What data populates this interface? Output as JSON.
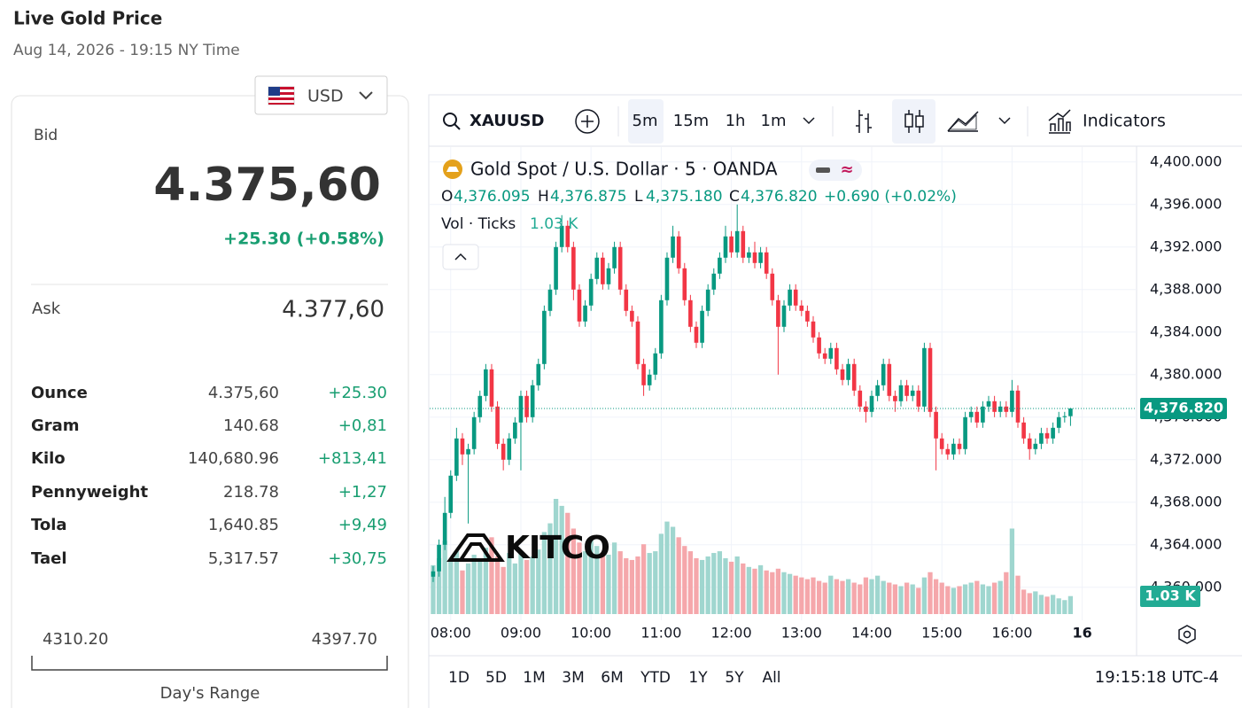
{
  "header": {
    "title": "Live Gold Price",
    "subtitle": "Aug 14, 2026 - 19:15 NY Time"
  },
  "currency": "USD",
  "quote": {
    "bid_label": "Bid",
    "bid": "4.375,60",
    "change": "+25.30 (+0.58%)",
    "ask_label": "Ask",
    "ask": "4.377,60"
  },
  "units": [
    {
      "name": "Ounce",
      "price": "4.375,60",
      "change": "+25.30"
    },
    {
      "name": "Gram",
      "price": "140.68",
      "change": "+0,81"
    },
    {
      "name": "Kilo",
      "price": "140,680.96",
      "change": "+813,41"
    },
    {
      "name": "Pennyweight",
      "price": "218.78",
      "change": "+1,27"
    },
    {
      "name": "Tola",
      "price": "1,640.85",
      "change": "+9,49"
    },
    {
      "name": "Tael",
      "price": "5,317.57",
      "change": "+30,75"
    }
  ],
  "range": {
    "low": "4310.20",
    "high": "4397.70",
    "label": "Day's Range"
  },
  "toolbar": {
    "symbol": "XAUUSD",
    "intervals": [
      "5m",
      "15m",
      "1h",
      "1m"
    ],
    "indicators": "Indicators"
  },
  "periods": [
    "1D",
    "5D",
    "1M",
    "3M",
    "6M",
    "YTD",
    "1Y",
    "5Y",
    "All"
  ],
  "clock": "19:15:18 UTC-4",
  "chart_data": {
    "type": "candlestick",
    "title": "Gold Spot / U.S. Dollar · 5 · OANDA",
    "ohlc": [
      {
        "key": "O",
        "label": "4,376.095"
      },
      {
        "key": "H",
        "label": "4,376.875"
      },
      {
        "key": "L",
        "label": "4,375.180"
      },
      {
        "key": "C",
        "label": "4,376.820"
      }
    ],
    "change": "+0.690 (+0.02%)",
    "volume_title": "Vol · Ticks",
    "volume_label": "1.03 K",
    "last_price_label": "4,376.820",
    "watermark": "KITCO",
    "up_color": "#089981",
    "down_color": "#f23645",
    "volume_up_color": "#9fd6cf",
    "volume_down_color": "#f5a7ab",
    "grid": true,
    "xlim": [
      -0.6,
      120.3
    ],
    "ylim": [
      4356.9,
      4401.4
    ],
    "yticks": [
      {
        "value": 4400,
        "label": "4,400.000"
      },
      {
        "value": 4396,
        "label": "4,396.000"
      },
      {
        "value": 4392,
        "label": "4,392.000"
      },
      {
        "value": 4388,
        "label": "4,388.000"
      },
      {
        "value": 4384,
        "label": "4,384.000"
      },
      {
        "value": 4380,
        "label": "4,380.000"
      },
      {
        "value": 4376,
        "label": "4,376.000"
      },
      {
        "value": 4372,
        "label": "4,372.000"
      },
      {
        "value": 4368,
        "label": "4,368.000"
      },
      {
        "value": 4364,
        "label": "4,364.000"
      },
      {
        "value": 4360,
        "label": "4,360.000"
      }
    ],
    "xticks": [
      {
        "value": 3,
        "label": "08:00"
      },
      {
        "value": 15,
        "label": "09:00"
      },
      {
        "value": 27,
        "label": "10:00"
      },
      {
        "value": 39,
        "label": "11:00"
      },
      {
        "value": 51,
        "label": "12:00"
      },
      {
        "value": 63,
        "label": "13:00"
      },
      {
        "value": 75,
        "label": "14:00"
      },
      {
        "value": 87,
        "label": "15:00"
      },
      {
        "value": 99,
        "label": "16:00"
      },
      {
        "value": 111,
        "label": "16"
      }
    ],
    "candles": [
      [
        4361,
        4362,
        4360.5,
        4361.5
      ],
      [
        4361.5,
        4364.5,
        4361,
        4364
      ],
      [
        4364,
        4368.5,
        4363.5,
        4367
      ],
      [
        4367,
        4371,
        4366.5,
        4370.5
      ],
      [
        4370.5,
        4375,
        4370,
        4374
      ],
      [
        4374,
        4374.5,
        4371.5,
        4372.5
      ],
      [
        4372.5,
        4373.5,
        4366,
        4373
      ],
      [
        4373,
        4376.5,
        4372.5,
        4376
      ],
      [
        4376,
        4378.5,
        4375.5,
        4378
      ],
      [
        4378,
        4381,
        4377.5,
        4380.5
      ],
      [
        4380.5,
        4381,
        4376.5,
        4377
      ],
      [
        4377,
        4377.5,
        4373,
        4373.5
      ],
      [
        4373.5,
        4374,
        4371,
        4372
      ],
      [
        4372,
        4374.5,
        4371.5,
        4374
      ],
      [
        4374,
        4376,
        4373.5,
        4375.5
      ],
      [
        4375.5,
        4378.5,
        4371,
        4378
      ],
      [
        4378,
        4378.5,
        4375.5,
        4376
      ],
      [
        4376,
        4379.5,
        4375.5,
        4379
      ],
      [
        4379,
        4381.5,
        4378.5,
        4381
      ],
      [
        4381,
        4386.5,
        4380.5,
        4386
      ],
      [
        4386,
        4388.5,
        4385.5,
        4388
      ],
      [
        4388,
        4392.5,
        4387.5,
        4392
      ],
      [
        4392,
        4395,
        4391.5,
        4394
      ],
      [
        4394,
        4394.5,
        4391.5,
        4392
      ],
      [
        4392,
        4392.5,
        4387,
        4388
      ],
      [
        4388,
        4388.5,
        4384.5,
        4385
      ],
      [
        4385,
        4387,
        4384.5,
        4386.5
      ],
      [
        4386.5,
        4389.5,
        4386,
        4389
      ],
      [
        4389,
        4391.5,
        4388.5,
        4391
      ],
      [
        4391,
        4391.5,
        4388,
        4388.5
      ],
      [
        4388.5,
        4390.5,
        4388,
        4390
      ],
      [
        4390,
        4392.5,
        4389.5,
        4392
      ],
      [
        4392,
        4392.5,
        4387.5,
        4388
      ],
      [
        4388,
        4388.5,
        4385.5,
        4386
      ],
      [
        4386,
        4386.5,
        4384.5,
        4385
      ],
      [
        4385,
        4385.5,
        4380.5,
        4381
      ],
      [
        4381,
        4381.5,
        4378,
        4379
      ],
      [
        4379,
        4380.5,
        4378.5,
        4380
      ],
      [
        4380,
        4382.5,
        4379.5,
        4382
      ],
      [
        4382,
        4387.5,
        4381.5,
        4387
      ],
      [
        4387,
        4391.5,
        4386.5,
        4391
      ],
      [
        4391,
        4394,
        4390.5,
        4393
      ],
      [
        4393,
        4393.5,
        4389.5,
        4390
      ],
      [
        4390,
        4390.5,
        4386.5,
        4387
      ],
      [
        4387,
        4387.5,
        4384,
        4384.5
      ],
      [
        4384.5,
        4385,
        4382.5,
        4383
      ],
      [
        4383,
        4386.5,
        4382.5,
        4386
      ],
      [
        4386,
        4388.5,
        4385.5,
        4388
      ],
      [
        4388,
        4390,
        4387.5,
        4389.5
      ],
      [
        4389.5,
        4391.5,
        4389,
        4391
      ],
      [
        4391,
        4394,
        4390.5,
        4393
      ],
      [
        4393,
        4393.5,
        4391,
        4391.5
      ],
      [
        4391.5,
        4396,
        4391,
        4393.5
      ],
      [
        4393.5,
        4394,
        4390.5,
        4391
      ],
      [
        4391,
        4392,
        4390.5,
        4391.5
      ],
      [
        4391.5,
        4392.5,
        4390,
        4390.5
      ],
      [
        4390.5,
        4392,
        4390,
        4391.5
      ],
      [
        4391.5,
        4392,
        4389,
        4389.5
      ],
      [
        4389.5,
        4390,
        4386.5,
        4387
      ],
      [
        4387,
        4387.5,
        4380,
        4384.5
      ],
      [
        4384.5,
        4387,
        4384,
        4386.5
      ],
      [
        4386.5,
        4388.5,
        4386,
        4388
      ],
      [
        4388,
        4388.5,
        4386,
        4386.5
      ],
      [
        4386.5,
        4387,
        4385.5,
        4386
      ],
      [
        4386,
        4386.5,
        4384.5,
        4385
      ],
      [
        4385,
        4385.5,
        4383,
        4383.5
      ],
      [
        4383.5,
        4384,
        4381.5,
        4382
      ],
      [
        4382,
        4382.5,
        4381,
        4381.5
      ],
      [
        4381.5,
        4383,
        4381,
        4382.5
      ],
      [
        4382.5,
        4383,
        4380,
        4380.5
      ],
      [
        4380.5,
        4381,
        4379,
        4379.5
      ],
      [
        4379.5,
        4381.5,
        4379,
        4381
      ],
      [
        4381,
        4381.5,
        4378,
        4378.5
      ],
      [
        4378.5,
        4379,
        4376.5,
        4377
      ],
      [
        4377,
        4377.5,
        4375.5,
        4376.5
      ],
      [
        4376.5,
        4378.5,
        4376,
        4378
      ],
      [
        4378,
        4379.5,
        4377.5,
        4379
      ],
      [
        4379,
        4381.5,
        4378.5,
        4381
      ],
      [
        4381,
        4381.5,
        4377.5,
        4378
      ],
      [
        4378,
        4378.5,
        4376.5,
        4377.5
      ],
      [
        4377.5,
        4379.5,
        4377,
        4379
      ],
      [
        4379,
        4379.5,
        4377.5,
        4378
      ],
      [
        4378,
        4379,
        4377.5,
        4378.5
      ],
      [
        4378.5,
        4379,
        4376.5,
        4377
      ],
      [
        4377,
        4383,
        4376.5,
        4382.5
      ],
      [
        4382.5,
        4383,
        4376,
        4376.5
      ],
      [
        4376.5,
        4377,
        4371,
        4374
      ],
      [
        4374,
        4374.5,
        4372.5,
        4373
      ],
      [
        4373,
        4373.5,
        4372,
        4372.5
      ],
      [
        4372.5,
        4374,
        4372,
        4373.5
      ],
      [
        4373.5,
        4374,
        4372.5,
        4373
      ],
      [
        4373,
        4376.5,
        4372.5,
        4376
      ],
      [
        4376,
        4377,
        4375.5,
        4376.5
      ],
      [
        4376.5,
        4377,
        4375,
        4375.5
      ],
      [
        4375.5,
        4377.5,
        4375,
        4377
      ],
      [
        4377,
        4378,
        4376.5,
        4377.5
      ],
      [
        4377.5,
        4378,
        4376,
        4376.5
      ],
      [
        4376.5,
        4377.5,
        4376,
        4377
      ],
      [
        4377,
        4377.5,
        4376,
        4376.5
      ],
      [
        4376.5,
        4379.5,
        4376,
        4378.5
      ],
      [
        4378.5,
        4379,
        4375,
        4375.5
      ],
      [
        4375.5,
        4376,
        4373.5,
        4374
      ],
      [
        4374,
        4374.5,
        4372,
        4373
      ],
      [
        4373,
        4374,
        4372.5,
        4373.5
      ],
      [
        4373.5,
        4375,
        4373,
        4374.5
      ],
      [
        4374.5,
        4375,
        4373.5,
        4374
      ],
      [
        4374,
        4375.5,
        4373.5,
        4375
      ],
      [
        4375,
        4376.5,
        4374.5,
        4376
      ],
      [
        4376,
        4376.5,
        4375.5,
        4376.095
      ],
      [
        4376.095,
        4376.875,
        4375.18,
        4376.82
      ]
    ],
    "volumes": [
      2800,
      3200,
      4200,
      3000,
      3600,
      2500,
      2900,
      3400,
      3100,
      3800,
      4400,
      3300,
      2700,
      3500,
      2900,
      3600,
      3100,
      3300,
      3700,
      4700,
      5200,
      6600,
      6200,
      5800,
      4900,
      4100,
      3600,
      4300,
      3900,
      3500,
      3400,
      4100,
      3600,
      3200,
      3100,
      3300,
      4000,
      3500,
      3600,
      4600,
      5300,
      5000,
      4400,
      3900,
      3600,
      3200,
      3100,
      3300,
      3500,
      3600,
      3200,
      3000,
      3300,
      2900,
      2700,
      2600,
      2800,
      2500,
      2400,
      2600,
      2400,
      2300,
      2200,
      2100,
      2000,
      2100,
      1900,
      1800,
      2200,
      2000,
      1900,
      2000,
      1800,
      1700,
      2100,
      2000,
      2200,
      1900,
      1800,
      1700,
      1600,
      1800,
      1700,
      1500,
      2100,
      2400,
      2000,
      1800,
      1600,
      1500,
      1600,
      1700,
      1800,
      1900,
      1700,
      1600,
      1800,
      1900,
      2400,
      4900,
      2200,
      1400,
      1200,
      1300,
      1100,
      1000,
      1100,
      900,
      800,
      1030
    ]
  }
}
